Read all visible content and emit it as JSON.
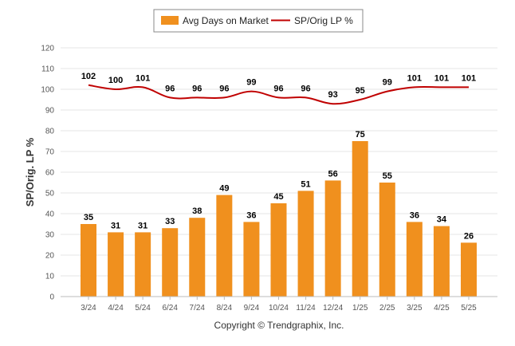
{
  "chart_data": {
    "type": "bar",
    "categories": [
      "3/24",
      "4/24",
      "5/24",
      "6/24",
      "7/24",
      "8/24",
      "9/24",
      "10/24",
      "11/24",
      "12/24",
      "1/25",
      "2/25",
      "3/25",
      "4/25",
      "5/25"
    ],
    "series": [
      {
        "name": "Avg Days on Market",
        "type": "bar",
        "color": "#F0901E",
        "values": [
          35,
          31,
          31,
          33,
          38,
          49,
          36,
          45,
          51,
          56,
          75,
          55,
          36,
          34,
          26
        ]
      },
      {
        "name": "SP/Orig LP %",
        "type": "line",
        "color": "#C00000",
        "values": [
          102,
          100,
          101,
          96,
          96,
          96,
          99,
          96,
          96,
          93,
          95,
          99,
          101,
          101,
          101
        ]
      }
    ],
    "ylabel": "SP/Orig. LP %",
    "ylim": [
      0,
      120
    ],
    "yticks": [
      0,
      10,
      20,
      30,
      40,
      50,
      60,
      70,
      80,
      90,
      100,
      110,
      120
    ],
    "grid": true,
    "legend": "top-center"
  },
  "footer": "Copyright © Trendgraphix, Inc."
}
